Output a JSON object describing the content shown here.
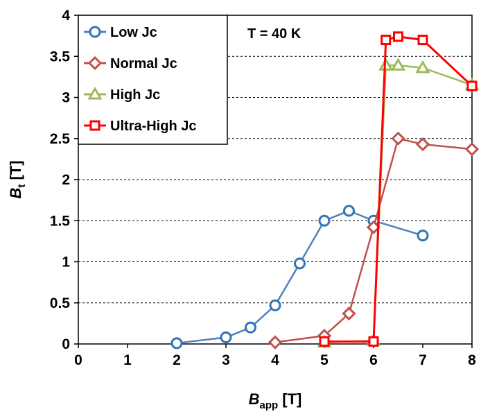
{
  "chart_data": {
    "type": "line",
    "annotation": "T = 40 K",
    "xlabel": {
      "main": "B",
      "sub": "app",
      "unit": " [T]"
    },
    "ylabel": {
      "main": "B",
      "sub": "t",
      "unit": " [T]"
    },
    "xlim": [
      0,
      8
    ],
    "ylim": [
      0,
      4
    ],
    "xticks": [
      "0",
      "1",
      "2",
      "3",
      "4",
      "5",
      "6",
      "7",
      "8"
    ],
    "yticks": [
      "0",
      "0.5",
      "1",
      "1.5",
      "2",
      "2.5",
      "3",
      "3.5",
      "4"
    ],
    "grid": "horizontal",
    "legend_position": "top-left",
    "series": [
      {
        "name": "Low Jc",
        "marker": "circle",
        "line_color": "#4F81BD",
        "marker_color": "#2E75B6",
        "x": [
          2,
          3,
          3.5,
          4,
          4.5,
          5,
          5.5,
          6,
          7
        ],
        "y": [
          0.01,
          0.08,
          0.2,
          0.47,
          0.98,
          1.5,
          1.62,
          1.5,
          1.32
        ]
      },
      {
        "name": "Normal Jc",
        "marker": "diamond",
        "line_color": "#C0504D",
        "marker_color": "#C0504D",
        "x": [
          4,
          5,
          5.5,
          6,
          6.5,
          7,
          8
        ],
        "y": [
          0.02,
          0.1,
          0.37,
          1.42,
          2.5,
          2.43,
          2.37
        ]
      },
      {
        "name": "High Jc",
        "marker": "triangle",
        "line_color": "#9BBB59",
        "marker_color": "#9BBB59",
        "x": [
          5,
          6,
          6.25,
          6.5,
          7,
          8
        ],
        "y": [
          0.02,
          0.04,
          3.39,
          3.39,
          3.36,
          3.15
        ]
      },
      {
        "name": "Ultra-High Jc",
        "marker": "square",
        "line_color": "#FF0000",
        "marker_color": "#FF0000",
        "x": [
          5,
          6,
          6.25,
          6.5,
          7,
          8
        ],
        "y": [
          0.03,
          0.03,
          3.7,
          3.74,
          3.7,
          3.14
        ]
      }
    ]
  }
}
